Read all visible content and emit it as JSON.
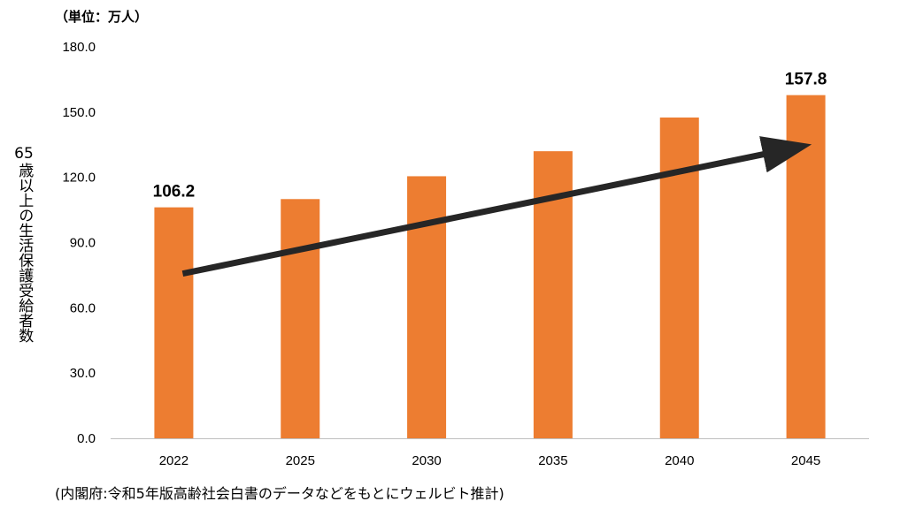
{
  "unit_label": "（単位：万人）",
  "source_note": "(内閣府:令和5年版高齢社会白書のデータなどをもとにウェルビト推計)",
  "ylabel": {
    "number": "65",
    "text": "歳以上の生活保護受給者数"
  },
  "colors": {
    "bar": "#ED7D31",
    "arrow": "#262626",
    "axis": "#BFBFBF"
  },
  "chart_data": {
    "type": "bar",
    "categories": [
      "2022",
      "2025",
      "2030",
      "2035",
      "2040",
      "2045"
    ],
    "values": [
      106.2,
      110.0,
      120.5,
      132.0,
      147.5,
      157.8
    ],
    "data_labels": [
      {
        "index": 0,
        "text": "106.2"
      },
      {
        "index": 5,
        "text": "157.8"
      }
    ],
    "yticks": [
      "0.0",
      "30.0",
      "60.0",
      "90.0",
      "120.0",
      "150.0",
      "180.0"
    ],
    "ylim": [
      0,
      180
    ],
    "grid": false,
    "annotation": {
      "type": "trend-arrow",
      "from_category_index": 0,
      "to_category_index": 5
    }
  }
}
